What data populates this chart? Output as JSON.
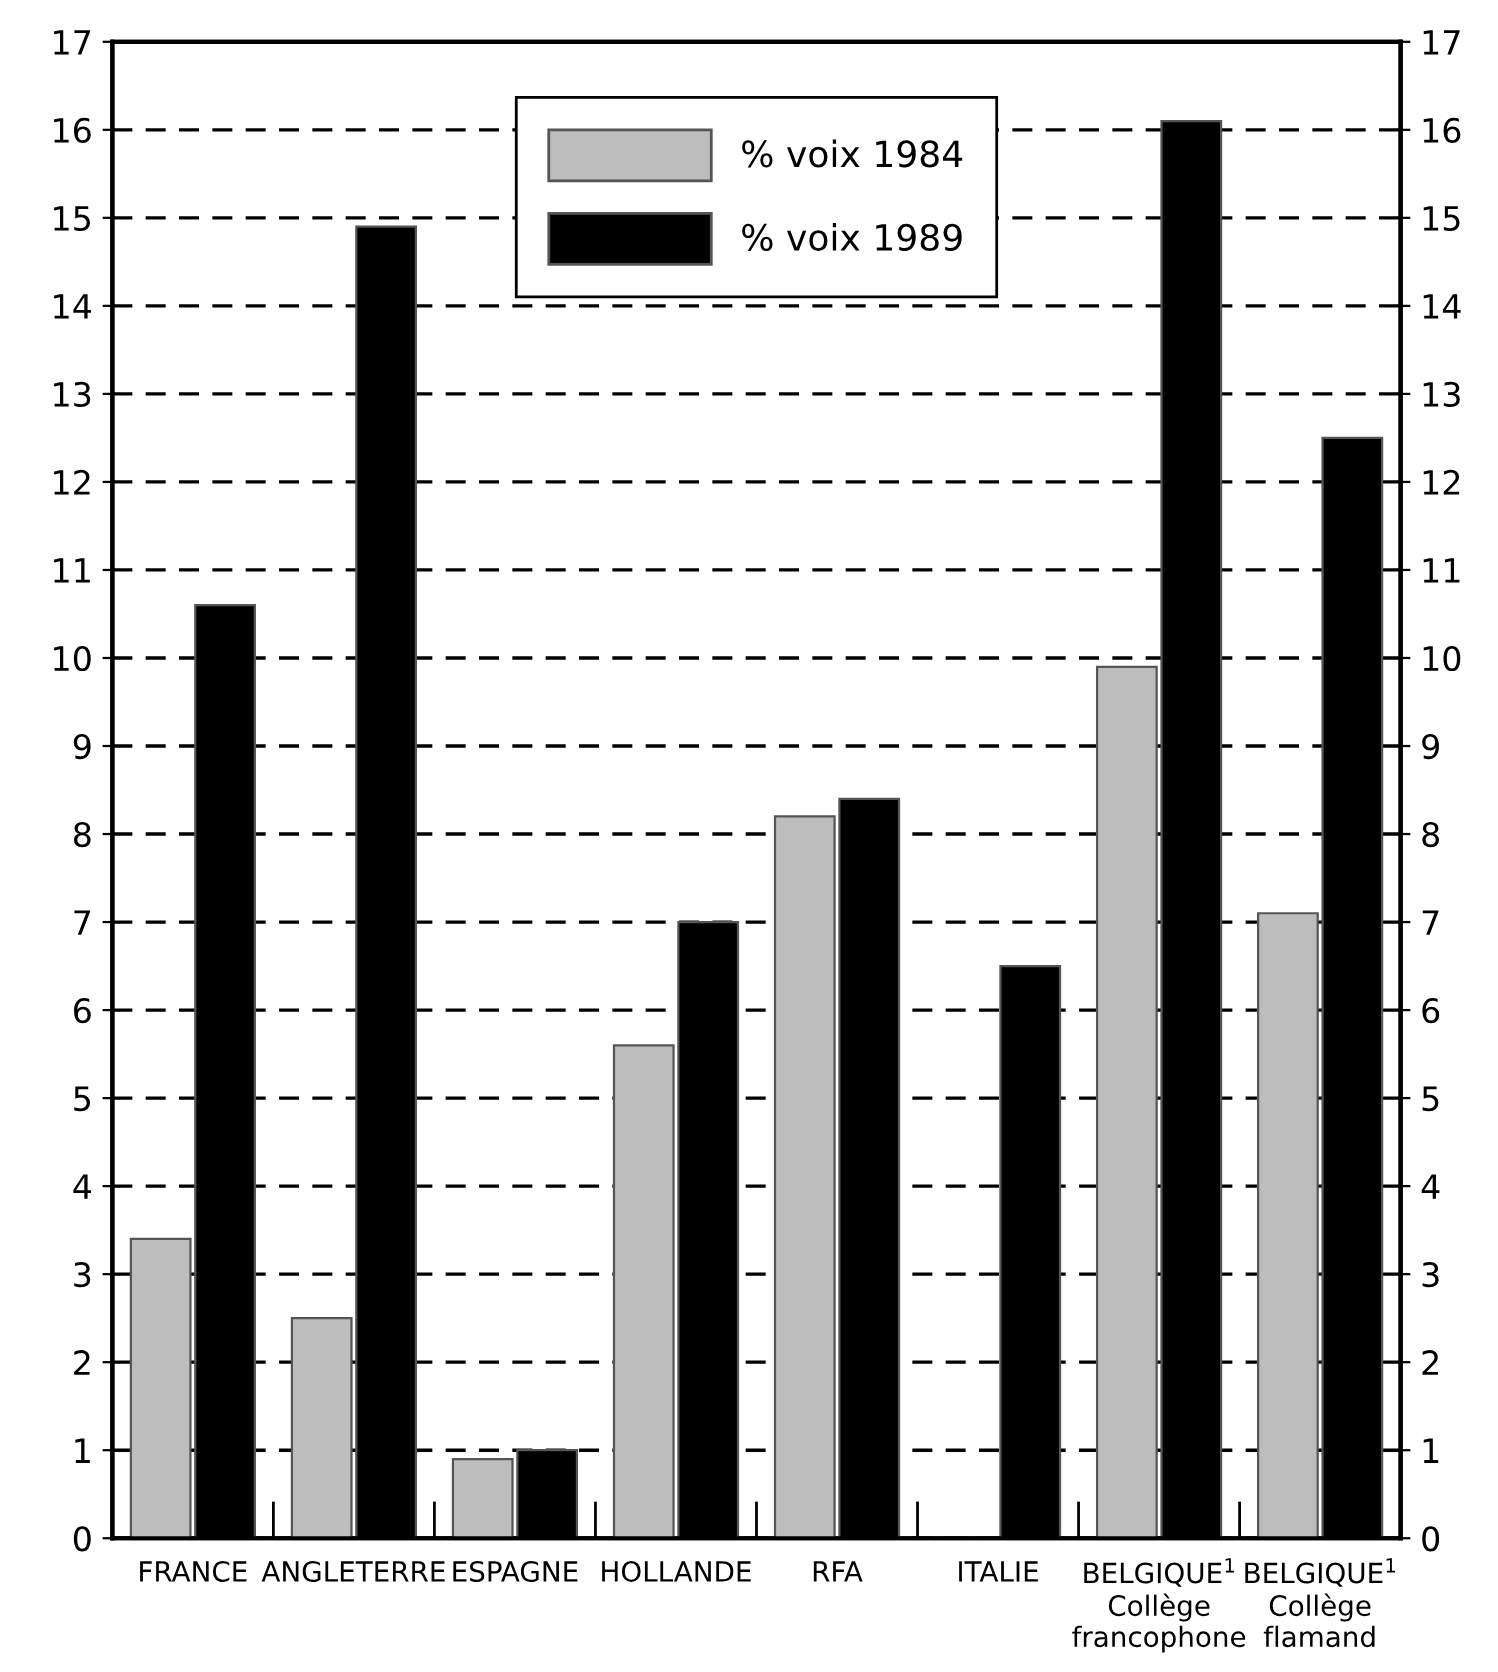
{
  "chart_data": {
    "type": "bar",
    "categories": [
      "FRANCE",
      "ANGLETERRE",
      "ESPAGNE",
      "HOLLANDE",
      "RFA",
      "ITALIE",
      "BELGIQUE$^{1}$\nCollège\nfrancophone",
      "BELGIQUE$^{1}$\nCollège\nflamand"
    ],
    "series": [
      {
        "name": "% voix 1984",
        "color": "#bdbdbd",
        "values": [
          3.4,
          2.5,
          0.9,
          5.6,
          8.2,
          null,
          9.9,
          7.1
        ]
      },
      {
        "name": "% voix 1989",
        "color": "#000000",
        "values": [
          10.6,
          14.9,
          1.0,
          7.0,
          8.4,
          6.5,
          16.1,
          12.5
        ]
      }
    ],
    "ylim": [
      0,
      17
    ],
    "yticks": [
      0,
      1,
      2,
      3,
      4,
      5,
      6,
      7,
      8,
      9,
      10,
      11,
      12,
      13,
      14,
      15,
      16,
      17
    ],
    "y2lim": [
      0,
      17
    ],
    "y2ticks": [
      0,
      1,
      2,
      3,
      4,
      5,
      6,
      7,
      8,
      9,
      10,
      11,
      12,
      13,
      14,
      15,
      16,
      17
    ],
    "grid": "y",
    "legend": "top"
  }
}
